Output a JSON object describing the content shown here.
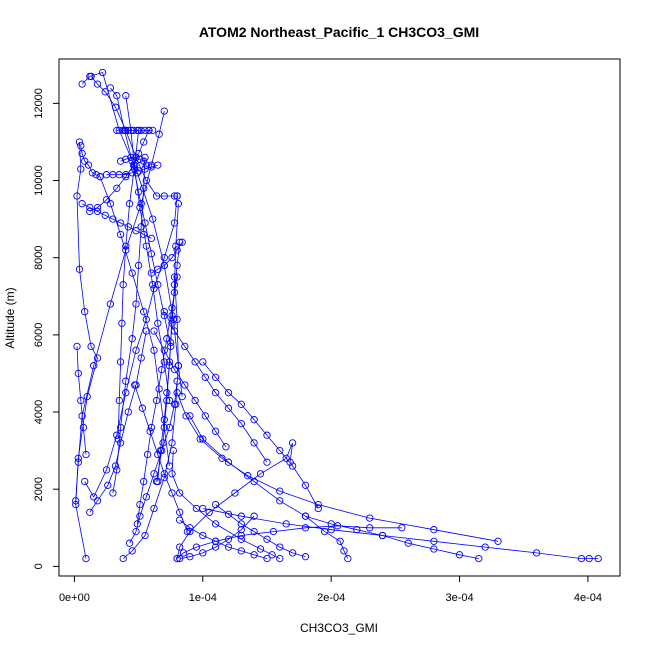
{
  "chart_data": {
    "type": "line",
    "title": "ATOM2 Northeast_Pacific_1 CH3CO3_GMI",
    "xlabel": "CH3CO3_GMI",
    "ylabel": "Altitude (m)",
    "xlim": [
      -1.2e-05,
      0.000425
    ],
    "ylim": [
      -250,
      13150
    ],
    "xticks": [
      0,
      0.0001,
      0.0002,
      0.0003,
      0.0004
    ],
    "xtick_labels": [
      "0e+00",
      "1e-04",
      "2e-04",
      "3e-04",
      "4e-04"
    ],
    "yticks": [
      0,
      2000,
      4000,
      6000,
      8000,
      10000,
      12000
    ],
    "ytick_labels": [
      "0",
      "2000",
      "4000",
      "6000",
      "8000",
      "10000",
      "12000"
    ],
    "grid": false,
    "color": "#0000ff",
    "marker": "open-circle",
    "series": [
      {
        "x": [
          9e-06,
          1e-06,
          3e-06,
          1e-05,
          1.8e-05,
          1.3e-05,
          8e-06,
          4e-06,
          2e-06,
          5e-06,
          4e-06
        ],
        "y": [
          200,
          1600,
          2800,
          4400,
          5400,
          5700,
          6600,
          7700,
          9600,
          10300,
          11000
        ]
      },
      {
        "x": [
          1e-06,
          3e-06,
          6e-06,
          1.5e-05,
          2.8e-05,
          4e-05,
          5.2e-05,
          6e-05,
          6.6e-05,
          7e-05
        ],
        "y": [
          1700,
          2700,
          3900,
          5200,
          6800,
          8200,
          9400,
          10400,
          11200,
          11800
        ]
      },
      {
        "x": [
          6e-06,
          1.2e-05,
          2.2e-05,
          3.5e-05,
          4.9e-05,
          6.1e-05,
          7e-05,
          7.7e-05,
          8.1e-05,
          8.4e-05
        ],
        "y": [
          12500,
          12700,
          12800,
          11300,
          10200,
          9000,
          7800,
          6400,
          5200,
          4400
        ]
      },
      {
        "x": [
          8e-06,
          1.5e-05,
          2.5e-05,
          3.3e-05,
          4e-05,
          4.8e-05,
          5.6e-05,
          6.2e-05,
          7e-05,
          7.8e-05,
          8e-05
        ],
        "y": [
          2200,
          1800,
          2500,
          3400,
          4500,
          5600,
          6400,
          7200,
          8000,
          8900,
          9600
        ]
      },
      {
        "x": [
          3e-05,
          3.3e-05,
          3.6e-05,
          4e-05,
          4.5e-05,
          4.8e-05,
          5e-05,
          5.2e-05,
          5.4e-05,
          5.5e-05
        ],
        "y": [
          1900,
          2500,
          3600,
          4800,
          5900,
          6800,
          7800,
          8800,
          9800,
          10600
        ]
      },
      {
        "x": [
          3.8e-05,
          4.5e-05,
          5.5e-05,
          6.2e-05,
          7e-05,
          7.6e-05,
          7.9e-05,
          8.1e-05,
          8e-05,
          7.8e-05
        ],
        "y": [
          200,
          400,
          800,
          1500,
          2300,
          3200,
          4200,
          5200,
          6400,
          7500
        ]
      },
      {
        "x": [
          8e-05,
          8.5e-05,
          9.5e-05,
          0.00011,
          0.00013,
          0.000155,
          0.00018,
          0.000205,
          0.00023,
          0.000255
        ],
        "y": [
          200,
          350,
          500,
          650,
          800,
          900,
          1000,
          1050,
          1000,
          1000
        ]
      },
      {
        "x": [
          0.00033,
          0.00028,
          0.00023,
          0.00019,
          0.00016,
          0.000135,
          0.000115,
          9.8e-05,
          8.7e-05,
          8e-05
        ],
        "y": [
          650,
          950,
          1250,
          1600,
          1950,
          2350,
          2800,
          3300,
          3900,
          4500
        ]
      },
      {
        "x": [
          0.000408,
          0.000401,
          0.000395,
          0.00036,
          0.00032,
          0.00028,
          0.00024,
          0.0002,
          0.000165,
          0.00013,
          0.0001
        ],
        "y": [
          200,
          200,
          200,
          350,
          500,
          650,
          800,
          950,
          1100,
          1300,
          1500
        ]
      },
      {
        "x": [
          8e-05,
          8.2e-05,
          9e-05,
          0.000105,
          0.000125,
          0.000145,
          0.000165,
          0.00017,
          0.000168
        ],
        "y": [
          200,
          500,
          900,
          1400,
          1900,
          2400,
          2800,
          3200,
          2700
        ]
      },
      {
        "x": [
          0.000213,
          0.00021,
          0.000207,
          0.000195,
          0.00018,
          0.00016,
          0.00014,
          0.00012,
          0.0001,
          9e-05
        ],
        "y": [
          200,
          400,
          650,
          900,
          1300,
          1700,
          2200,
          2700,
          3300,
          3900
        ]
      },
      {
        "x": [
          0.00016,
          0.000154,
          0.000145,
          0.00013,
          0.00011,
          9.5e-05,
          8.2e-05,
          7.6e-05,
          7.7e-05
        ],
        "y": [
          200,
          300,
          450,
          700,
          1100,
          1500,
          1900,
          2400,
          3000
        ]
      },
      {
        "x": [
          1.2e-05,
          1.8e-05,
          2.6e-05,
          3.2e-05,
          3.6e-05,
          4.2e-05,
          4.8e-05,
          5.2e-05,
          5.6e-05
        ],
        "y": [
          1400,
          1700,
          2100,
          2600,
          3200,
          4000,
          4700,
          5400,
          6100
        ]
      },
      {
        "x": [
          4.3e-05,
          4.8e-05,
          5.1e-05,
          5.6e-05,
          6.2e-05,
          6.8e-05,
          7.4e-05,
          7.8e-05,
          8e-05
        ],
        "y": [
          600,
          900,
          1300,
          1800,
          2400,
          3000,
          3600,
          4200,
          4800
        ]
      },
      {
        "x": [
          4.9e-05,
          5.1e-05,
          5.4e-05,
          5.7e-05,
          6e-05,
          6.4e-05,
          6.8e-05,
          7.2e-05,
          7.6e-05,
          8e-05
        ],
        "y": [
          1100,
          1600,
          2200,
          2900,
          3600,
          4300,
          5100,
          5900,
          6700,
          7500
        ]
      },
      {
        "x": [
          6.4e-05,
          6.9e-05,
          7.2e-05,
          7.4e-05,
          7.6e-05,
          7.8e-05,
          7.9e-05,
          8.1e-05
        ],
        "y": [
          2200,
          3200,
          4300,
          5300,
          6300,
          7300,
          8300,
          9400
        ]
      },
      {
        "x": [
          5e-05,
          4.7e-05,
          4.3e-05,
          4e-05,
          3.8e-05,
          3.7e-05,
          3.6e-05,
          3.5e-05,
          3.4e-05
        ],
        "y": [
          11300,
          10400,
          9400,
          8300,
          7300,
          6300,
          5300,
          4300,
          3300
        ]
      },
      {
        "x": [
          2e-05,
          2.8e-05,
          3.6e-05,
          4.5e-05,
          5.4e-05,
          6.2e-05,
          6.6e-05,
          7e-05,
          7.4e-05
        ],
        "y": [
          10100,
          9400,
          8600,
          7600,
          6600,
          5600,
          4600,
          3600,
          2600
        ]
      },
      {
        "x": [
          1.2e-05,
          1.8e-05,
          2.5e-05,
          3.3e-05,
          4e-05,
          4.6e-05,
          5e-05,
          5.4e-05,
          5.8e-05
        ],
        "y": [
          9200,
          9300,
          9500,
          9800,
          10100,
          10400,
          10700,
          11000,
          11300
        ]
      },
      {
        "x": [
          4e-05,
          4.4e-05,
          4.7e-05,
          5.1e-05,
          5.6e-05,
          6.1e-05,
          6.5e-05,
          7e-05,
          7.4e-05
        ],
        "y": [
          12200,
          11300,
          10300,
          9300,
          8300,
          7300,
          6300,
          5300,
          4300
        ]
      },
      {
        "x": [
          2.8e-05,
          3.3e-05,
          3.9e-05,
          4.5e-05,
          5e-05,
          5.5e-05,
          6e-05,
          6.5e-05,
          7e-05,
          7.5e-05
        ],
        "y": [
          12400,
          12200,
          11300,
          10500,
          9700,
          8900,
          8100,
          7300,
          6500,
          5700
        ]
      },
      {
        "x": [
          6e-06,
          1.2e-05,
          1.8e-05,
          2.4e-05,
          3e-05,
          3.6e-05,
          4.2e-05,
          4.8e-05,
          5.4e-05,
          6e-05
        ],
        "y": [
          9400,
          9300,
          9200,
          9100,
          9000,
          8900,
          8800,
          8700,
          8600,
          8500
        ]
      },
      {
        "x": [
          1.3e-05,
          1.8e-05,
          2.4e-05,
          3.2e-05,
          4e-05,
          4.8e-05,
          5.6e-05,
          6.4e-05,
          7e-05,
          7.8e-05,
          8e-05
        ],
        "y": [
          12700,
          12500,
          12300,
          11900,
          11300,
          10600,
          10000,
          9600,
          9600,
          9600,
          9600
        ]
      },
      {
        "x": [
          2.5e-05,
          3e-05,
          3.5e-05,
          4e-05,
          4.5e-05,
          5e-05,
          5.5e-05,
          6e-05,
          6.5e-05
        ],
        "y": [
          10150,
          10150,
          10150,
          10150,
          10200,
          10250,
          10300,
          10350,
          10400
        ]
      },
      {
        "x": [
          3.3e-05,
          3.8e-05,
          4.2e-05,
          4.6e-05,
          4.9e-05,
          5.2e-05,
          5.5e-05,
          5.8e-05,
          6.1e-05
        ],
        "y": [
          11300,
          11300,
          11300,
          11300,
          11300,
          11300,
          11300,
          11300,
          11300
        ]
      },
      {
        "x": [
          3.6e-05,
          4e-05,
          4.4e-05,
          4.8e-05,
          5.1e-05,
          5.4e-05,
          5.6e-05
        ],
        "y": [
          10500,
          10550,
          10600,
          10600,
          10550,
          10500,
          10400
        ]
      },
      {
        "x": [
          8.2e-05,
          8e-05,
          7.8e-05,
          7.6e-05,
          7.5e-05,
          7.4e-05,
          7.2e-05,
          7e-05,
          6.7e-05,
          6.5e-05
        ],
        "y": [
          8400,
          7800,
          7100,
          6500,
          5800,
          5200,
          4500,
          3800,
          3000,
          2200
        ]
      },
      {
        "x": [
          0.0001,
          0.00011,
          0.00012,
          0.00013,
          0.00014,
          0.00015,
          0.00016,
          0.00017,
          0.00018,
          0.00019
        ],
        "y": [
          5300,
          4900,
          4500,
          4200,
          3800,
          3400,
          3000,
          2600,
          2100,
          1500
        ]
      },
      {
        "x": [
          7e-05,
          7.8e-05,
          8.6e-05,
          9.4e-05,
          0.000102,
          0.00011,
          0.00012,
          0.00013,
          0.00014,
          0.00015
        ],
        "y": [
          6600,
          6100,
          5700,
          5300,
          4900,
          4500,
          4100,
          3700,
          3200,
          2700
        ]
      },
      {
        "x": [
          6.2e-05,
          7e-05,
          7.8e-05,
          8.6e-05,
          9.4e-05,
          0.000102,
          0.00011,
          0.000118
        ],
        "y": [
          6100,
          5600,
          5100,
          4700,
          4300,
          3900,
          3500,
          3100
        ]
      },
      {
        "x": [
          4.7e-05,
          5.3e-05,
          5.9e-05,
          6.5e-05,
          7e-05,
          7.6e-05,
          8.2e-05,
          8.8e-05
        ],
        "y": [
          4700,
          4100,
          3500,
          2900,
          2400,
          1900,
          1400,
          900
        ]
      },
      {
        "x": [
          8.2e-05,
          9e-05,
          0.0001,
          0.00011,
          0.00012,
          0.00013,
          0.00014
        ],
        "y": [
          200,
          250,
          350,
          500,
          700,
          950,
          1300
        ]
      },
      {
        "x": [
          0.00015,
          0.00014,
          0.00013,
          0.00012,
          0.00011,
          0.0001,
          9e-05,
          8.2e-05
        ],
        "y": [
          200,
          300,
          400,
          500,
          650,
          800,
          1000,
          1200
        ]
      },
      {
        "x": [
          0.00018,
          0.00017,
          0.00016,
          0.00015,
          0.00014,
          0.00013,
          0.00012,
          0.00011
        ],
        "y": [
          250,
          350,
          500,
          700,
          900,
          1100,
          1350,
          1600
        ]
      },
      {
        "x": [
          0.000315,
          0.0003,
          0.00028,
          0.00026,
          0.00024,
          0.00022,
          0.0002,
          0.00018
        ],
        "y": [
          200,
          300,
          450,
          600,
          800,
          950,
          1100,
          1300
        ]
      },
      {
        "x": [
          5e-06,
          6e-06,
          8e-06,
          1.1e-05,
          1.4e-05,
          1.7e-05,
          2e-05
        ],
        "y": [
          10900,
          10700,
          10500,
          10400,
          10200,
          10150,
          10100
        ]
      },
      {
        "x": [
          2e-06,
          3e-06,
          5e-06,
          7e-06,
          9e-06
        ],
        "y": [
          5700,
          5000,
          4300,
          3600,
          2900
        ]
      },
      {
        "x": [
          6e-05,
          6.5e-05,
          7e-05,
          7.6e-05,
          8e-05,
          8.4e-05
        ],
        "y": [
          7600,
          7700,
          7800,
          8000,
          8200,
          8400
        ]
      }
    ]
  }
}
